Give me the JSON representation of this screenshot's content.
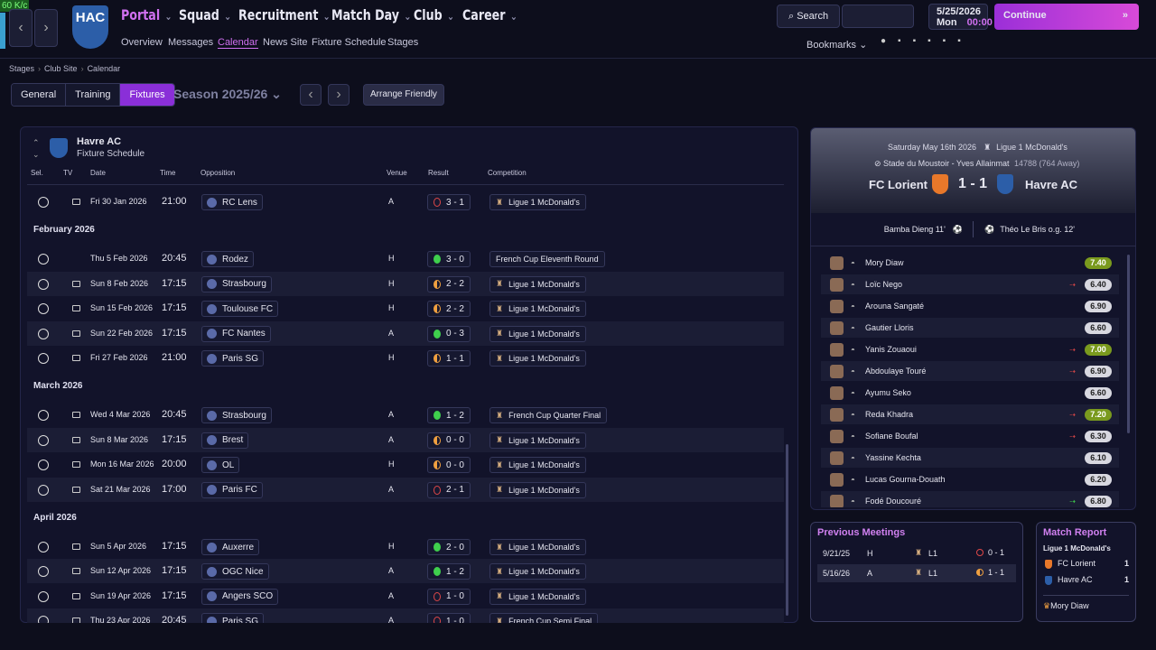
{
  "fps": "60 K/c",
  "nav": {
    "logo": "HAC",
    "menus": [
      "Portal",
      "Squad",
      "Recruitment",
      "Match Day",
      "Club",
      "Career"
    ],
    "submenus": [
      "Overview",
      "Messages",
      "Calendar",
      "News Site",
      "Fixture Schedule",
      "Stages"
    ],
    "search": "Search",
    "date": "5/25/2026",
    "day": "Mon",
    "time": "00:00",
    "continue": "Continue",
    "bookmarks": "Bookmarks"
  },
  "breadcrumb": [
    "Stages",
    "Club Site",
    "Calendar"
  ],
  "tabs": [
    "General",
    "Training",
    "Fixtures"
  ],
  "season": "Season 2025/26",
  "arrange": "Arrange Friendly",
  "fixtures": {
    "club": "Havre AC",
    "subtitle": "Fixture Schedule",
    "columns": [
      "Sel.",
      "TV",
      "Date",
      "Time",
      "Opposition",
      "Venue",
      "Result",
      "Competition"
    ],
    "groups": [
      {
        "rows": [
          {
            "tv": true,
            "date": "Fri 30 Jan 2026",
            "time": "21:00",
            "opponent": "RC Lens",
            "venue": "A",
            "result": "3 - 1",
            "competition": "Ligue 1 McDonald's",
            "icon_color": "#e04848",
            "icon_fill": "none"
          }
        ]
      },
      {
        "month": "February 2026",
        "rows": [
          {
            "tv": false,
            "date": "Thu 5 Feb 2026",
            "time": "20:45",
            "opponent": "Rodez",
            "venue": "H",
            "result": "3 - 0",
            "competition": "French Cup Eleventh Round",
            "icon_color": "#3fcf4d",
            "icon_fill": "full"
          },
          {
            "tv": true,
            "date": "Sun 8 Feb 2026",
            "time": "17:15",
            "opponent": "Strasbourg",
            "venue": "H",
            "result": "2 - 2",
            "competition": "Ligue 1 McDonald's",
            "icon_color": "#f0a040",
            "icon_fill": "half"
          },
          {
            "tv": true,
            "date": "Sun 15 Feb 2026",
            "time": "17:15",
            "opponent": "Toulouse FC",
            "venue": "H",
            "result": "2 - 2",
            "competition": "Ligue 1 McDonald's",
            "icon_color": "#f0a040",
            "icon_fill": "half"
          },
          {
            "tv": true,
            "date": "Sun 22 Feb 2026",
            "time": "17:15",
            "opponent": "FC Nantes",
            "venue": "A",
            "result": "0 - 3",
            "competition": "Ligue 1 McDonald's",
            "icon_color": "#3fcf4d",
            "icon_fill": "full"
          },
          {
            "tv": true,
            "date": "Fri 27 Feb 2026",
            "time": "21:00",
            "opponent": "Paris SG",
            "venue": "H",
            "result": "1 - 1",
            "competition": "Ligue 1 McDonald's",
            "icon_color": "#f0a040",
            "icon_fill": "half"
          }
        ]
      },
      {
        "month": "March 2026",
        "rows": [
          {
            "tv": true,
            "date": "Wed 4 Mar 2026",
            "time": "20:45",
            "opponent": "Strasbourg",
            "venue": "A",
            "result": "1 - 2",
            "competition": "French Cup Quarter Final",
            "icon_color": "#3fcf4d",
            "icon_fill": "full"
          },
          {
            "tv": true,
            "date": "Sun 8 Mar 2026",
            "time": "17:15",
            "opponent": "Brest",
            "venue": "A",
            "result": "0 - 0",
            "competition": "Ligue 1 McDonald's",
            "icon_color": "#f0a040",
            "icon_fill": "half"
          },
          {
            "tv": true,
            "date": "Mon 16 Mar 2026",
            "time": "20:00",
            "opponent": "OL",
            "venue": "H",
            "result": "0 - 0",
            "competition": "Ligue 1 McDonald's",
            "icon_color": "#f0a040",
            "icon_fill": "half"
          },
          {
            "tv": true,
            "date": "Sat 21 Mar 2026",
            "time": "17:00",
            "opponent": "Paris FC",
            "venue": "A",
            "result": "2 - 1",
            "competition": "Ligue 1 McDonald's",
            "icon_color": "#e04848",
            "icon_fill": "none"
          }
        ]
      },
      {
        "month": "April 2026",
        "rows": [
          {
            "tv": true,
            "date": "Sun 5 Apr 2026",
            "time": "17:15",
            "opponent": "Auxerre",
            "venue": "H",
            "result": "2 - 0",
            "competition": "Ligue 1 McDonald's",
            "icon_color": "#3fcf4d",
            "icon_fill": "full"
          },
          {
            "tv": true,
            "date": "Sun 12 Apr 2026",
            "time": "17:15",
            "opponent": "OGC Nice",
            "venue": "A",
            "result": "1 - 2",
            "competition": "Ligue 1 McDonald's",
            "icon_color": "#3fcf4d",
            "icon_fill": "full"
          },
          {
            "tv": true,
            "date": "Sun 19 Apr 2026",
            "time": "17:15",
            "opponent": "Angers SCO",
            "venue": "A",
            "result": "1 - 0",
            "competition": "Ligue 1 McDonald's",
            "icon_color": "#e04848",
            "icon_fill": "none"
          },
          {
            "tv": true,
            "date": "Thu 23 Apr 2026",
            "time": "20:45",
            "opponent": "Paris SG",
            "venue": "A",
            "result": "1 - 0",
            "competition": "French Cup Semi Final",
            "icon_color": "#e04848",
            "icon_fill": "none"
          }
        ]
      }
    ]
  },
  "match": {
    "date": "Saturday May 16th 2026",
    "competition": "Ligue 1 McDonald's",
    "stadium": "Stade du Moustoir - Yves Allainmat",
    "attendance": "14788",
    "away_fans": "(764 Away)",
    "home": "FC Lorient",
    "score": "1 - 1",
    "away": "Havre AC",
    "home_goals": [
      "Bamba Dieng 11'"
    ],
    "away_goals": [
      "Théo Le Bris o.g. 12'"
    ],
    "players": [
      {
        "name": "Mory Diaw",
        "rating": "7.40",
        "highlight": true
      },
      {
        "name": "Loïc Nego",
        "rating": "6.40",
        "sub": "out"
      },
      {
        "name": "Arouna Sangaté",
        "rating": "6.90"
      },
      {
        "name": "Gautier Lloris",
        "rating": "6.60"
      },
      {
        "name": "Yanis Zouaoui",
        "rating": "7.00",
        "sub": "out",
        "highlight": true
      },
      {
        "name": "Abdoulaye Touré",
        "rating": "6.90",
        "sub": "out"
      },
      {
        "name": "Ayumu Seko",
        "rating": "6.60"
      },
      {
        "name": "Reda Khadra",
        "rating": "7.20",
        "sub": "out",
        "highlight": true
      },
      {
        "name": "Sofiane Boufal",
        "rating": "6.30",
        "sub": "out"
      },
      {
        "name": "Yassine Kechta",
        "rating": "6.10"
      },
      {
        "name": "Lucas Gourna-Douath",
        "rating": "6.20"
      },
      {
        "name": "Fodé Doucouré",
        "rating": "6.80",
        "sub": "in"
      }
    ]
  },
  "previous": {
    "title": "Previous Meetings",
    "rows": [
      {
        "date": "9/21/25",
        "venue": "H",
        "competition": "L1",
        "result": "0 - 1",
        "icon_color": "#e04848",
        "icon_fill": "none"
      },
      {
        "date": "5/16/26",
        "venue": "A",
        "competition": "L1",
        "result": "1 - 1",
        "icon_color": "#f0a040",
        "icon_fill": "half"
      }
    ]
  },
  "report": {
    "title": "Match Report",
    "competition": "Ligue 1 McDonald's",
    "rows": [
      {
        "team": "FC Lorient",
        "goals": "1"
      },
      {
        "team": "Havre AC",
        "goals": "1"
      }
    ],
    "motm": "Mory Diaw"
  }
}
